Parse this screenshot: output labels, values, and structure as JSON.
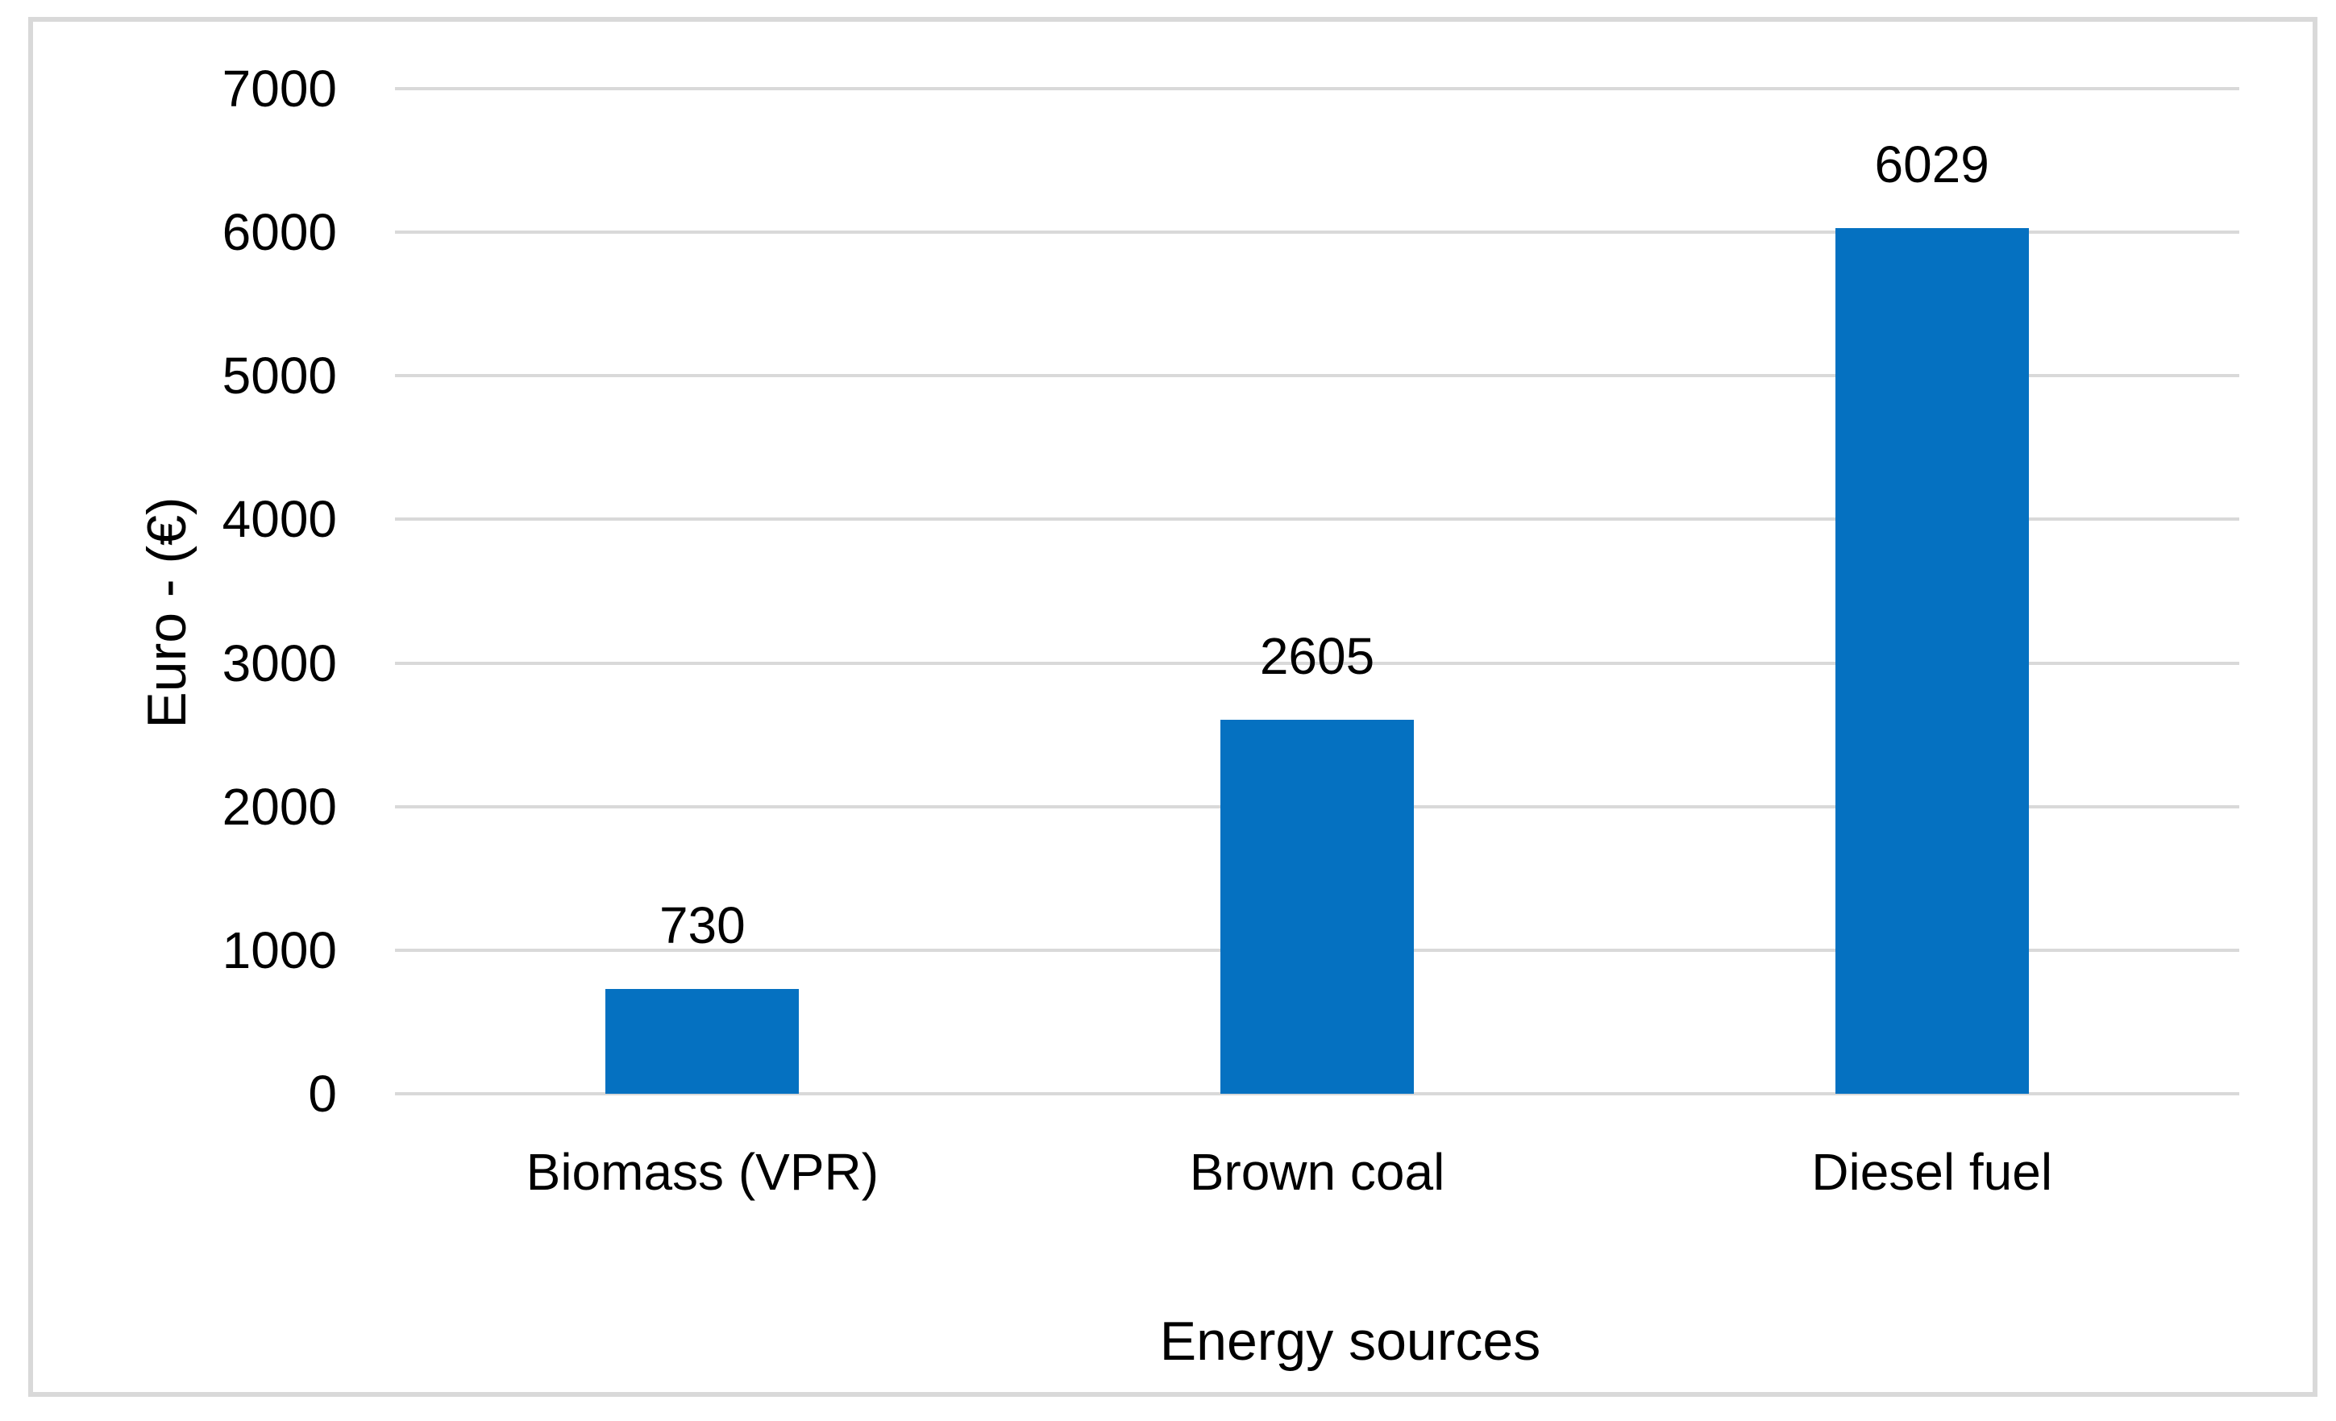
{
  "chart_data": {
    "type": "bar",
    "title": "",
    "categories": [
      "Biomass (VPR)",
      "Brown coal",
      "Diesel fuel"
    ],
    "values": [
      730,
      2605,
      6029
    ],
    "data_labels": [
      "730",
      "2605",
      "6029"
    ],
    "xlabel": "Energy sources",
    "ylabel": "Euro - (€)",
    "ylim": [
      0,
      7000
    ],
    "yticks": [
      0,
      1000,
      2000,
      3000,
      4000,
      5000,
      6000,
      7000
    ],
    "grid": true,
    "legend": false,
    "colors": {
      "bar": "#0571C1",
      "gridline": "#D9D9D9",
      "frame_border": "#D9D9D9",
      "text": "#000000",
      "background": "#FFFFFF"
    }
  }
}
